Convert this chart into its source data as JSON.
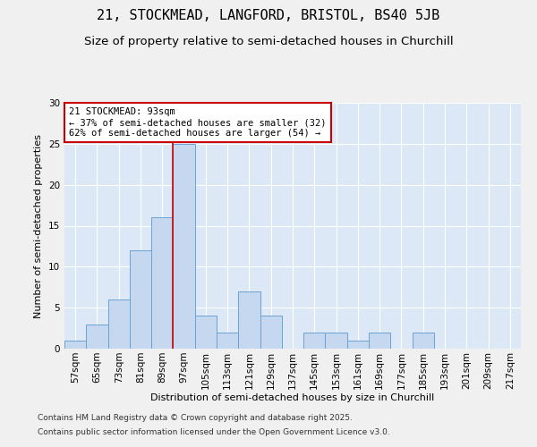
{
  "title1": "21, STOCKMEAD, LANGFORD, BRISTOL, BS40 5JB",
  "title2": "Size of property relative to semi-detached houses in Churchill",
  "xlabel": "Distribution of semi-detached houses by size in Churchill",
  "ylabel": "Number of semi-detached properties",
  "categories": [
    "57sqm",
    "65sqm",
    "73sqm",
    "81sqm",
    "89sqm",
    "97sqm",
    "105sqm",
    "113sqm",
    "121sqm",
    "129sqm",
    "137sqm",
    "145sqm",
    "153sqm",
    "161sqm",
    "169sqm",
    "177sqm",
    "185sqm",
    "193sqm",
    "201sqm",
    "209sqm",
    "217sqm"
  ],
  "values": [
    1,
    3,
    6,
    12,
    16,
    25,
    4,
    2,
    7,
    4,
    0,
    2,
    2,
    1,
    2,
    0,
    2,
    0,
    0,
    0,
    0
  ],
  "bar_color": "#c5d8f0",
  "bar_edge_color": "#6aa3d4",
  "vline_bin_index": 5,
  "annotation_text": "21 STOCKMEAD: 93sqm\n← 37% of semi-detached houses are smaller (32)\n62% of semi-detached houses are larger (54) →",
  "annotation_box_color": "#ffffff",
  "annotation_box_edge": "#cc0000",
  "vline_color": "#cc0000",
  "ylim": [
    0,
    30
  ],
  "yticks": [
    0,
    5,
    10,
    15,
    20,
    25,
    30
  ],
  "background_color": "#dce8f5",
  "fig_background": "#f0f0f0",
  "footer1": "Contains HM Land Registry data © Crown copyright and database right 2025.",
  "footer2": "Contains public sector information licensed under the Open Government Licence v3.0.",
  "title1_fontsize": 11,
  "title2_fontsize": 9.5,
  "axis_label_fontsize": 8,
  "tick_fontsize": 7.5,
  "annotation_fontsize": 7.5,
  "footer_fontsize": 6.5
}
